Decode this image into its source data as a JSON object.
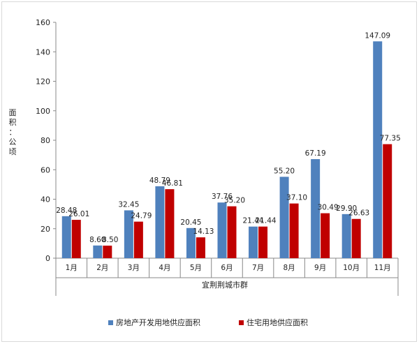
{
  "chart_data": {
    "type": "bar",
    "title": "",
    "xlabel": "宜荆荆城市群",
    "ylabel": "面积：公顷",
    "ylim": [
      0,
      160
    ],
    "yticks": [
      0,
      20,
      40,
      60,
      80,
      100,
      120,
      140,
      160
    ],
    "categories": [
      "1月",
      "2月",
      "3月",
      "4月",
      "5月",
      "6月",
      "7月",
      "8月",
      "9月",
      "10月",
      "11月"
    ],
    "series": [
      {
        "name": "房地产开发用地供应面积",
        "color": "#4f81bd",
        "values": [
          28.48,
          8.6,
          32.45,
          48.79,
          20.45,
          37.76,
          21.44,
          55.2,
          67.19,
          29.9,
          147.09
        ],
        "labels": [
          "28.48",
          "8.60",
          "32.45",
          "48.79",
          "20.45",
          "37.76",
          "21.44",
          "55.20",
          "67.19",
          "29.90",
          "147.09"
        ]
      },
      {
        "name": "住宅用地供应面积",
        "color": "#c00000",
        "values": [
          26.01,
          8.5,
          24.79,
          46.81,
          14.13,
          35.2,
          21.44,
          37.1,
          30.49,
          26.63,
          77.35
        ],
        "labels": [
          "26.01",
          "8.50",
          "24.79",
          "46.81",
          "14.13",
          "35.20",
          "21.44",
          "37.10",
          "30.49",
          "26.63",
          "77.35"
        ]
      }
    ],
    "grid": false,
    "legend_position": "bottom"
  }
}
